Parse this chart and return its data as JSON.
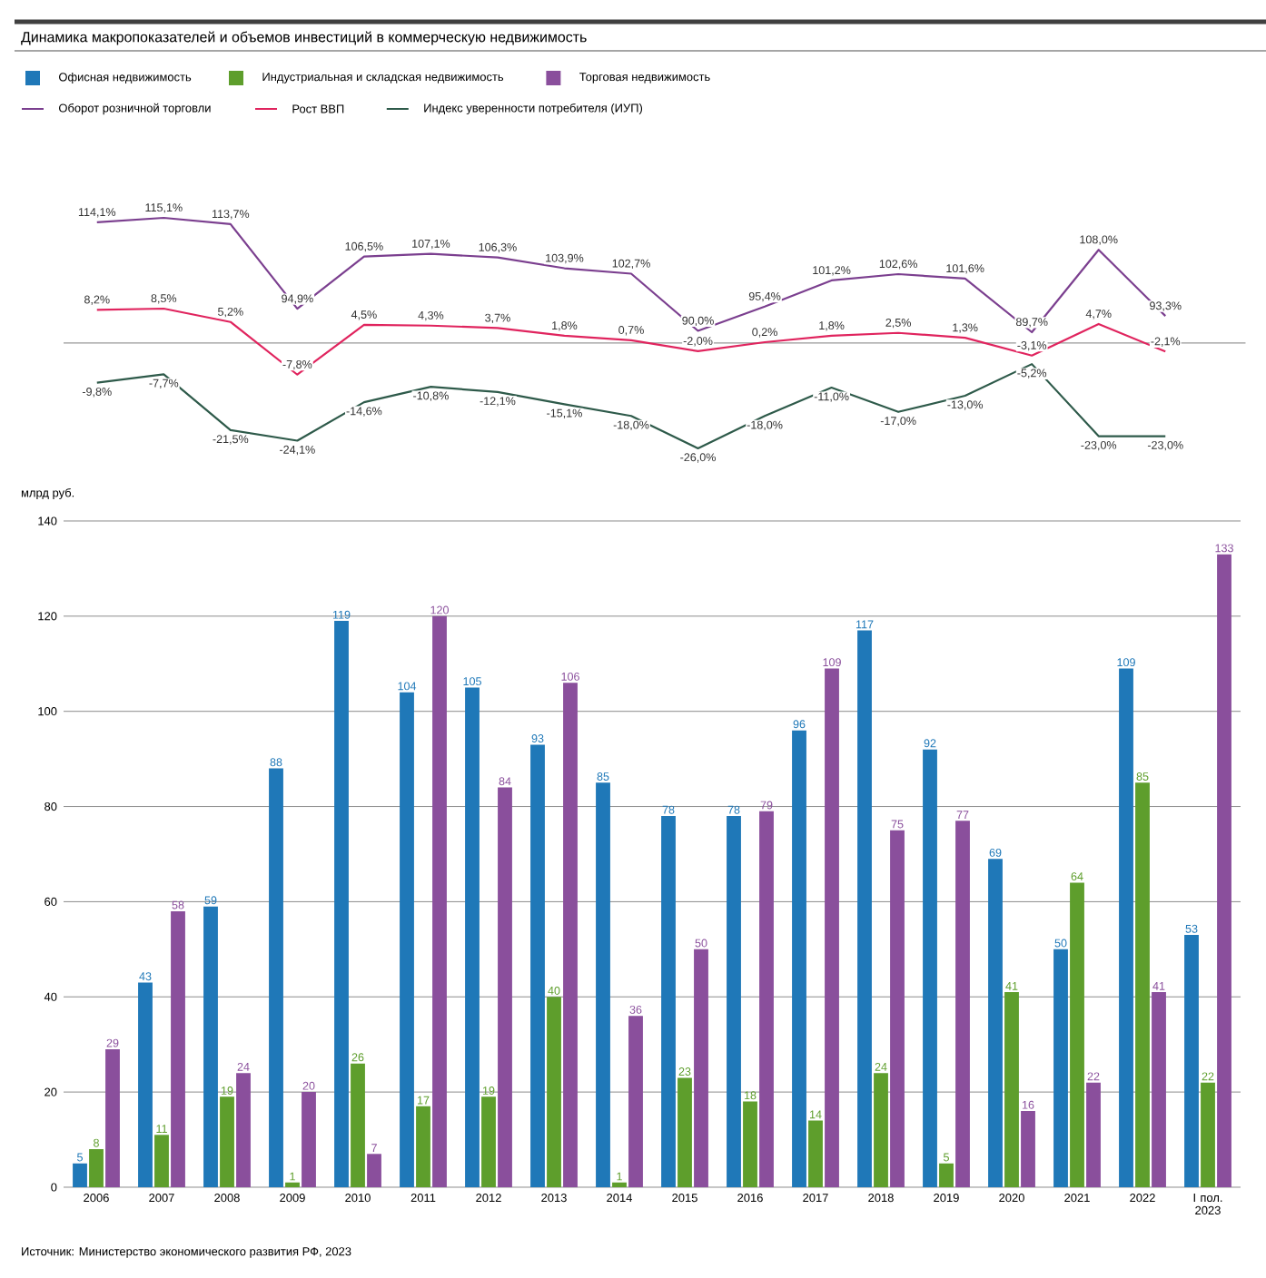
{
  "chart_data": [
    {
      "type": "line",
      "title": "Динамика макропоказателей и объемов инвестиций в коммерческую недвижимость",
      "categories": [
        null,
        null,
        null,
        null,
        null,
        null,
        null,
        null,
        null,
        null,
        null,
        null,
        null,
        null,
        null,
        null,
        null
      ],
      "series": [
        {
          "name": "Оборот розничной торговли",
          "color": "#7b3f8f",
          "values": [
            114.1,
            115.1,
            113.7,
            94.9,
            106.5,
            107.1,
            106.3,
            103.9,
            102.7,
            90.0,
            95.4,
            101.2,
            102.6,
            101.6,
            89.7,
            108.0,
            93.3
          ],
          "value_labels": [
            "114,1%",
            "115,1%",
            "113,7%",
            "94,9%",
            "106,5%",
            "107,1%",
            "106,3%",
            "103,9%",
            "102,7%",
            "90,0%",
            "95,4%",
            "101,2%",
            "102,6%",
            "101,6%",
            "89,7%",
            "108,0%",
            "93,3%"
          ]
        }
      ],
      "tick_labels": false,
      "legend": "top"
    },
    {
      "type": "line",
      "categories": [
        null,
        null,
        null,
        null,
        null,
        null,
        null,
        null,
        null,
        null,
        null,
        null,
        null,
        null,
        null,
        null,
        null
      ],
      "series": [
        {
          "name": "Рост ВВП",
          "color": "#e0245e",
          "values": [
            8.2,
            8.5,
            5.2,
            -7.8,
            4.5,
            4.3,
            3.7,
            1.8,
            0.7,
            -2.0,
            0.2,
            1.8,
            2.5,
            1.3,
            -3.1,
            4.7,
            -2.1
          ],
          "value_labels": [
            "8,2%",
            "8,5%",
            "5,2%",
            "-7,8%",
            "4,5%",
            "4,3%",
            "3,7%",
            "1,8%",
            "0,7%",
            "-2,0%",
            "0,2%",
            "1,8%",
            "2,5%",
            "1,3%",
            "-3,1%",
            "4,7%",
            "-2,1%"
          ]
        },
        {
          "name": "Индекс уверенности потребителя (ИУП)",
          "color": "#2e5a4a",
          "values": [
            -9.8,
            -7.7,
            -21.5,
            -24.1,
            -14.6,
            -10.8,
            -12.1,
            -15.1,
            -18.0,
            -26.0,
            -18.0,
            -11.0,
            -17.0,
            -13.0,
            -5.2,
            -23.0,
            -23.0
          ],
          "value_labels": [
            "-9,8%",
            "-7,7%",
            "-21,5%",
            "-24,1%",
            "-14,6%",
            "-10,8%",
            "-12,1%",
            "-15,1%",
            "-18,0%",
            "-26,0%",
            "-18,0%",
            "-11,0%",
            "-17,0%",
            "-13,0%",
            "-5,2%",
            "-23,0%",
            "-23,0%"
          ]
        }
      ],
      "tick_labels": false,
      "legend": "top",
      "ref_lines": [
        {
          "axis": "y",
          "value": 0,
          "color": "#999999"
        }
      ]
    },
    {
      "type": "bar",
      "categories": [
        "2006",
        "2007",
        "2008",
        "2009",
        "2010",
        "2011",
        "2012",
        "2013",
        "2014",
        "2015",
        "2016",
        "2017",
        "2018",
        "2019",
        "2020",
        "2021",
        "2022",
        "I пол. 2023"
      ],
      "series": [
        {
          "name": "Офисная недвижимость",
          "color": "#1f78b8",
          "values": [
            5,
            43,
            59,
            88,
            119,
            104,
            105,
            93,
            85,
            78,
            78,
            96,
            117,
            92,
            69,
            50,
            109,
            53
          ]
        },
        {
          "name": "Индустриальная и складская недвижимость",
          "color": "#5e9e2c",
          "values": [
            8,
            11,
            19,
            1,
            26,
            17,
            19,
            40,
            1,
            23,
            18,
            14,
            24,
            5,
            41,
            64,
            85,
            22
          ]
        },
        {
          "name": "Торговая недвижимость",
          "color": "#8a4f9c",
          "values": [
            29,
            58,
            24,
            20,
            7,
            120,
            84,
            106,
            36,
            50,
            79,
            109,
            75,
            77,
            16,
            22,
            41,
            133
          ]
        }
      ],
      "ylabel": "млрд руб.",
      "ylim": [
        0,
        140
      ],
      "yticks": [
        0,
        20,
        40,
        60,
        80,
        100,
        120,
        140
      ],
      "grid": "y",
      "data_labels": true,
      "legend": "top",
      "annotations": [
        "Источник: Министерство экономического развития РФ, 2023"
      ]
    }
  ]
}
